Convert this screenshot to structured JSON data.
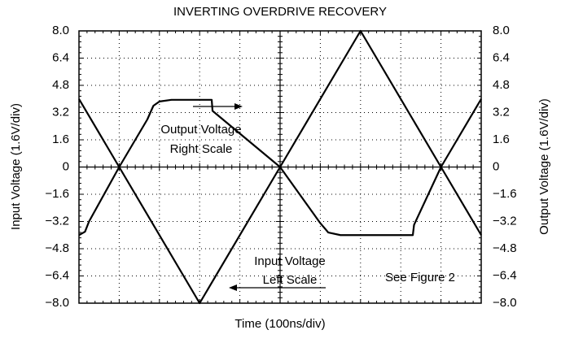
{
  "chart_data": {
    "type": "line",
    "title": "INVERTING OVERDRIVE RECOVERY",
    "xlabel": "Time (100ns/div)",
    "ylabel": "Input Voltage (1.6V/div)",
    "y2label": "Output Voltage (1.6V/div)",
    "xlim": [
      0,
      10
    ],
    "xticks": [
      0,
      1,
      2,
      3,
      4,
      5,
      6,
      7,
      8,
      9,
      10
    ],
    "ylim": [
      -8,
      8
    ],
    "yticks": [
      {
        "value": -8,
        "label": "−8.0"
      },
      {
        "value": -6.4,
        "label": "−6.4"
      },
      {
        "value": -4.8,
        "label": "−4.8"
      },
      {
        "value": -3.2,
        "label": "−3.2"
      },
      {
        "value": -1.6,
        "label": "−1.6"
      },
      0,
      1.6,
      3.2,
      4.8,
      6.4,
      {
        "value": 8,
        "label": "8.0"
      }
    ],
    "y2lim": [
      -8,
      8
    ],
    "y2ticks": [
      {
        "value": -8,
        "label": "−8.0"
      },
      {
        "value": -6.4,
        "label": "−6.4"
      },
      {
        "value": -4.8,
        "label": "−4.8"
      },
      {
        "value": -3.2,
        "label": "−3.2"
      },
      {
        "value": -1.6,
        "label": "−1.6"
      },
      0,
      1.6,
      3.2,
      4.8,
      6.4,
      {
        "value": 8,
        "label": "8.0"
      }
    ],
    "grid": true,
    "series": [
      {
        "color": "#000000",
        "x": [
          0,
          1,
          3,
          5,
          7,
          9,
          10
        ],
        "values": [
          4,
          0,
          -8,
          0,
          8,
          0,
          -4
        ]
      },
      {
        "color": "#000000",
        "axis": "y2",
        "x": [
          0,
          0.15,
          0.25,
          1,
          1.7,
          1.85,
          2.0,
          2.3,
          3.3,
          3.32,
          5,
          6.0,
          6.2,
          6.5,
          8.3,
          8.33,
          9,
          9.85,
          10
        ],
        "values": [
          -4.0,
          -3.8,
          -3.2,
          0,
          2.8,
          3.6,
          3.85,
          3.95,
          3.95,
          3.3,
          0,
          -3.3,
          -3.85,
          -4.0,
          -4.0,
          -3.4,
          0,
          3.4,
          4.0
        ]
      }
    ],
    "annotations": [
      "Output Voltage",
      "Right Scale",
      "Input Voltage",
      "Left Scale",
      "See Figure 2"
    ]
  }
}
